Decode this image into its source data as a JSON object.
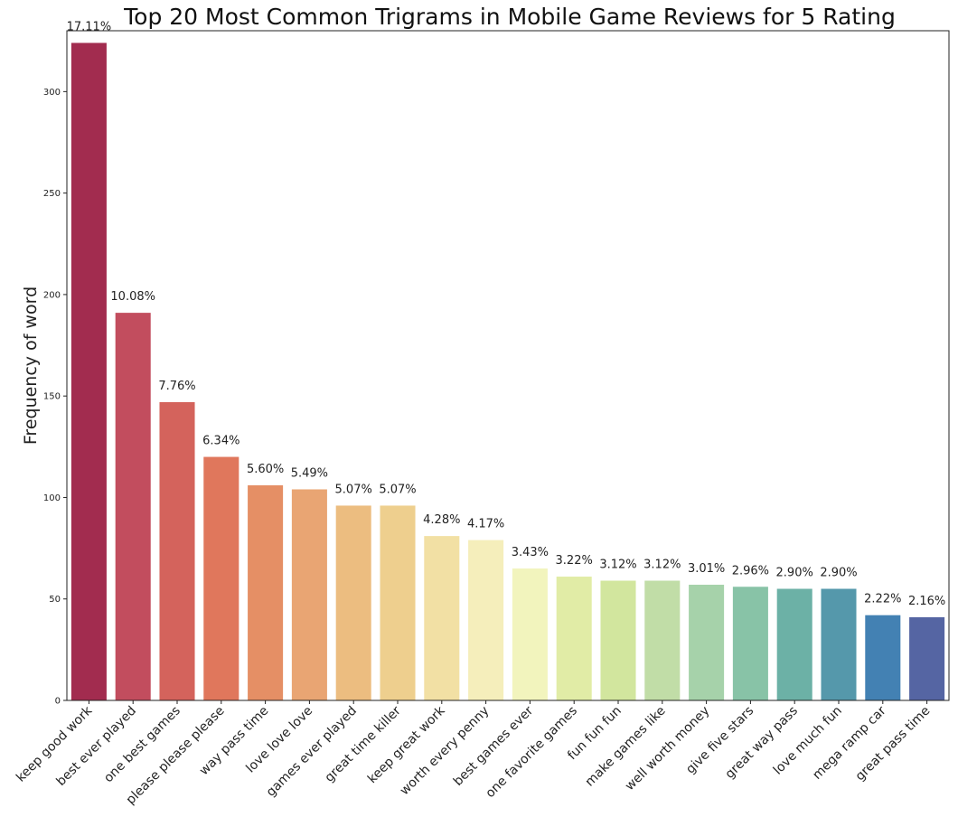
{
  "chart_data": {
    "type": "bar",
    "title": "Top 20 Most Common Trigrams in Mobile Game Reviews for 5 Rating",
    "xlabel": "",
    "ylabel": "Frequency of word",
    "ylim": [
      0,
      330
    ],
    "yticks": [
      0,
      50,
      100,
      150,
      200,
      250,
      300
    ],
    "grid": false,
    "categories": [
      "keep good work",
      "best ever played",
      "one best games",
      "please please please",
      "way pass time",
      "love love love",
      "games ever played",
      "great time killer",
      "keep great work",
      "worth every penny",
      "best games ever",
      "one favorite games",
      "fun fun fun",
      "make games like",
      "well worth money",
      "give five stars",
      "great way pass",
      "love much fun",
      "mega ramp car",
      "great pass time"
    ],
    "values": [
      324,
      191,
      147,
      120,
      106,
      104,
      96,
      96,
      81,
      79,
      65,
      61,
      59,
      59,
      57,
      56,
      55,
      55,
      42,
      41
    ],
    "data_labels": [
      "17.11%",
      "10.08%",
      "7.76%",
      "6.34%",
      "5.60%",
      "5.49%",
      "5.07%",
      "5.07%",
      "4.28%",
      "4.17%",
      "3.43%",
      "3.22%",
      "3.12%",
      "3.12%",
      "3.01%",
      "2.96%",
      "2.90%",
      "2.90%",
      "2.22%",
      "2.16%"
    ],
    "colors": [
      "#a22c4f",
      "#c24d5e",
      "#d4635c",
      "#e0775c",
      "#e58f65",
      "#e9a573",
      "#ecbd80",
      "#eecf8e",
      "#f2e0a4",
      "#f5eebb",
      "#f2f4bd",
      "#e1eca6",
      "#d2e69e",
      "#c1dda7",
      "#a6d2aa",
      "#88c3a7",
      "#6cb1a6",
      "#5598ab",
      "#4381b3",
      "#5565a3"
    ]
  }
}
